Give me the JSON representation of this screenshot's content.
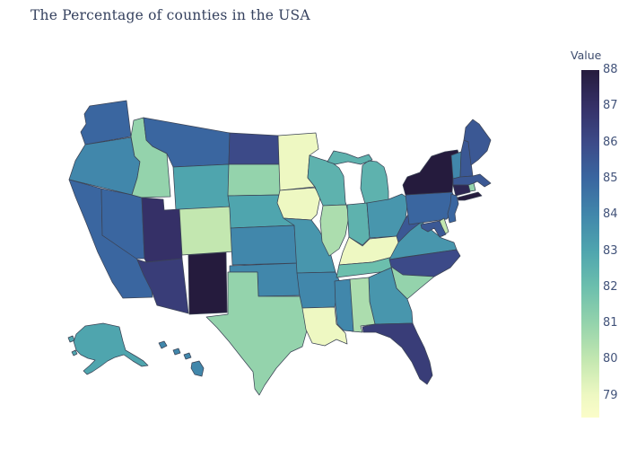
{
  "title": "The Percentage of counties in the USA",
  "legend": {
    "label": "Value",
    "ticks": [
      88,
      87,
      86,
      85,
      84,
      83,
      82,
      81,
      80,
      79
    ]
  },
  "style": {
    "background": "#ffffff",
    "border_color": "#3b4355",
    "title_color": "#35415e",
    "label_color": "#3e4c6e",
    "tick_color": "#42537a",
    "colorbar_bottom_color": "#fbfdc9"
  },
  "chart_data": {
    "type": "choropleth",
    "region": "USA states",
    "title": "The Percentage of counties in the USA",
    "colorbar_label": "Value",
    "value_range": [
      79,
      88
    ],
    "colorscale": [
      {
        "value": 79,
        "color": "#eef8c2"
      },
      {
        "value": 80,
        "color": "#c3e7b0"
      },
      {
        "value": 81,
        "color": "#94d3ac"
      },
      {
        "value": 82,
        "color": "#6cbfad"
      },
      {
        "value": 83,
        "color": "#4fa5ae"
      },
      {
        "value": 84,
        "color": "#4187ab"
      },
      {
        "value": 85,
        "color": "#3a66a0"
      },
      {
        "value": 86,
        "color": "#3c4a88"
      },
      {
        "value": 87,
        "color": "#353067"
      },
      {
        "value": 88,
        "color": "#251b3d"
      }
    ],
    "states": [
      {
        "abbr": "AL",
        "name": "Alabama",
        "value": 80.5
      },
      {
        "abbr": "AK",
        "name": "Alaska",
        "value": 83
      },
      {
        "abbr": "AZ",
        "name": "Arizona",
        "value": 86.5
      },
      {
        "abbr": "AR",
        "name": "Arkansas",
        "value": 84
      },
      {
        "abbr": "CA",
        "name": "California",
        "value": 85
      },
      {
        "abbr": "CO",
        "name": "Colorado",
        "value": 80
      },
      {
        "abbr": "CT",
        "name": "Connecticut",
        "value": 87.5
      },
      {
        "abbr": "DE",
        "name": "Delaware",
        "value": 80
      },
      {
        "abbr": "FL",
        "name": "Florida",
        "value": 86.5
      },
      {
        "abbr": "GA",
        "name": "Georgia",
        "value": 83.5
      },
      {
        "abbr": "HI",
        "name": "Hawaii",
        "value": 84
      },
      {
        "abbr": "ID",
        "name": "Idaho",
        "value": 81
      },
      {
        "abbr": "IL",
        "name": "Illinois",
        "value": 80.5
      },
      {
        "abbr": "IN",
        "name": "Indiana",
        "value": 82.5
      },
      {
        "abbr": "IA",
        "name": "Iowa",
        "value": 79
      },
      {
        "abbr": "KS",
        "name": "Kansas",
        "value": 84
      },
      {
        "abbr": "KY",
        "name": "Kentucky",
        "value": 79
      },
      {
        "abbr": "LA",
        "name": "Louisiana",
        "value": 79
      },
      {
        "abbr": "ME",
        "name": "Maine",
        "value": 85.5
      },
      {
        "abbr": "MD",
        "name": "Maryland",
        "value": 85.5
      },
      {
        "abbr": "MA",
        "name": "Massachusetts",
        "value": 85.5
      },
      {
        "abbr": "MI",
        "name": "Michigan",
        "value": 82.5
      },
      {
        "abbr": "MN",
        "name": "Minnesota",
        "value": 79
      },
      {
        "abbr": "MS",
        "name": "Mississippi",
        "value": 84
      },
      {
        "abbr": "MO",
        "name": "Missouri",
        "value": 83.5
      },
      {
        "abbr": "MT",
        "name": "Montana",
        "value": 85
      },
      {
        "abbr": "NE",
        "name": "Nebraska",
        "value": 83
      },
      {
        "abbr": "NV",
        "name": "Nevada",
        "value": 85
      },
      {
        "abbr": "NH",
        "name": "New Hampshire",
        "value": 85.5
      },
      {
        "abbr": "NJ",
        "name": "New Jersey",
        "value": 85
      },
      {
        "abbr": "NM",
        "name": "New Mexico",
        "value": 88
      },
      {
        "abbr": "NY",
        "name": "New York",
        "value": 88
      },
      {
        "abbr": "NC",
        "name": "North Carolina",
        "value": 86
      },
      {
        "abbr": "ND",
        "name": "North Dakota",
        "value": 86
      },
      {
        "abbr": "OH",
        "name": "Ohio",
        "value": 83.5
      },
      {
        "abbr": "OK",
        "name": "Oklahoma",
        "value": 84
      },
      {
        "abbr": "OR",
        "name": "Oregon",
        "value": 84
      },
      {
        "abbr": "PA",
        "name": "Pennsylvania",
        "value": 85
      },
      {
        "abbr": "RI",
        "name": "Rhode Island",
        "value": 81
      },
      {
        "abbr": "SC",
        "name": "South Carolina",
        "value": 81
      },
      {
        "abbr": "SD",
        "name": "South Dakota",
        "value": 81
      },
      {
        "abbr": "TN",
        "name": "Tennessee",
        "value": 82
      },
      {
        "abbr": "TX",
        "name": "Texas",
        "value": 81
      },
      {
        "abbr": "UT",
        "name": "Utah",
        "value": 87
      },
      {
        "abbr": "VT",
        "name": "Vermont",
        "value": 84
      },
      {
        "abbr": "VA",
        "name": "Virginia",
        "value": 83.5
      },
      {
        "abbr": "WA",
        "name": "Washington",
        "value": 85
      },
      {
        "abbr": "WV",
        "name": "West Virginia",
        "value": 85.5
      },
      {
        "abbr": "WI",
        "name": "Wisconsin",
        "value": 82.5
      },
      {
        "abbr": "WY",
        "name": "Wyoming",
        "value": 83
      }
    ]
  }
}
